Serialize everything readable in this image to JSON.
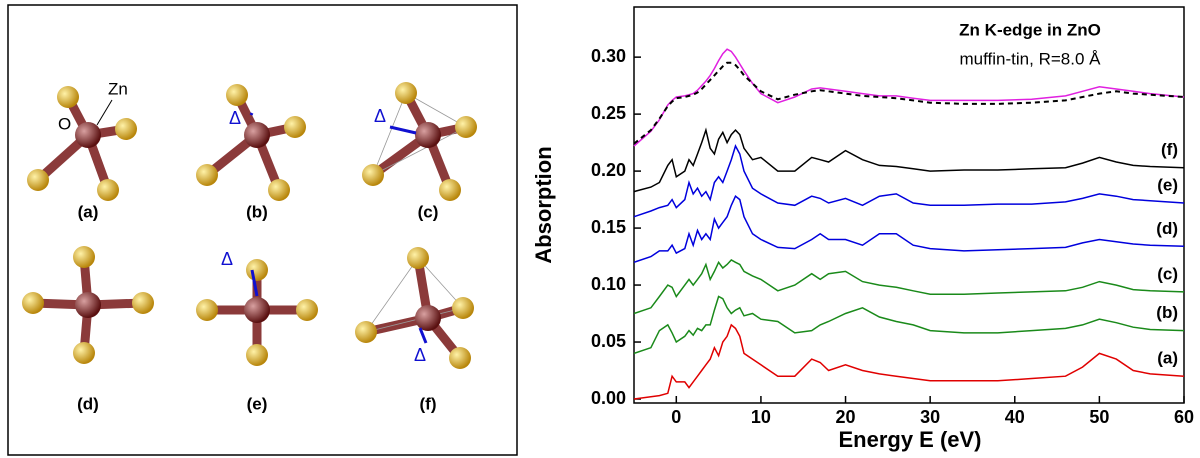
{
  "structures": {
    "panels": [
      "(a)",
      "(b)",
      "(c)",
      "(d)",
      "(e)",
      "(f)"
    ],
    "atom_labels": {
      "o": "O",
      "zn": "Zn"
    },
    "displacement": "Δ"
  },
  "chart_data": {
    "type": "line",
    "title": "Zn K-edge in ZnO",
    "subtitle": "muffin-tin, R=8.0 Å",
    "x_label": "Energy E (eV)",
    "y_label": "Absorption",
    "xlim": [
      -5,
      60
    ],
    "xticks": [
      0,
      10,
      20,
      30,
      40,
      50,
      60
    ],
    "ylim": [
      -0.0035,
      0.344
    ],
    "yticks": [
      {
        "value": 0,
        "label": "0.00"
      },
      {
        "value": 0.05,
        "label": "0.05"
      },
      {
        "value": 0.1,
        "label": "0.10"
      },
      {
        "value": 0.15,
        "label": "0.15"
      },
      {
        "value": 0.2,
        "label": "0.20"
      },
      {
        "value": 0.25,
        "label": "0.25"
      },
      {
        "value": 0.3,
        "label": "0.30"
      }
    ],
    "x": [
      -5,
      -3,
      -2,
      -1,
      -0.5,
      0,
      1,
      1.5,
      2,
      2.5,
      3,
      3.5,
      4,
      4.5,
      5,
      5.5,
      6,
      6.5,
      7,
      7.5,
      8,
      9,
      10,
      12,
      14,
      16,
      17,
      18,
      20,
      22,
      24,
      26,
      28,
      30,
      34,
      38,
      42,
      46,
      48,
      50,
      52,
      54,
      56,
      60
    ],
    "series": [
      {
        "color": "#e020e0",
        "style": "solid",
        "values": [
          0.222,
          0.235,
          0.245,
          0.258,
          0.262,
          0.265,
          0.266,
          0.267,
          0.268,
          0.271,
          0.275,
          0.279,
          0.284,
          0.29,
          0.297,
          0.303,
          0.307,
          0.305,
          0.3,
          0.294,
          0.288,
          0.277,
          0.268,
          0.26,
          0.265,
          0.272,
          0.273,
          0.272,
          0.27,
          0.268,
          0.266,
          0.266,
          0.264,
          0.262,
          0.262,
          0.262,
          0.263,
          0.266,
          0.27,
          0.274,
          0.272,
          0.27,
          0.268,
          0.265
        ]
      },
      {
        "color": "#000000",
        "style": "dashed",
        "values": [
          0.224,
          0.236,
          0.246,
          0.257,
          0.261,
          0.264,
          0.265,
          0.266,
          0.267,
          0.269,
          0.272,
          0.276,
          0.28,
          0.284,
          0.288,
          0.292,
          0.295,
          0.295,
          0.293,
          0.289,
          0.284,
          0.277,
          0.27,
          0.263,
          0.267,
          0.27,
          0.271,
          0.27,
          0.268,
          0.266,
          0.265,
          0.264,
          0.262,
          0.26,
          0.259,
          0.259,
          0.26,
          0.262,
          0.265,
          0.268,
          0.27,
          0.268,
          0.267,
          0.265
        ]
      },
      {
        "name": "(f)",
        "color": "#000000",
        "style": "solid",
        "values": [
          0.182,
          0.186,
          0.19,
          0.205,
          0.21,
          0.195,
          0.2,
          0.21,
          0.205,
          0.215,
          0.225,
          0.236,
          0.22,
          0.215,
          0.228,
          0.234,
          0.225,
          0.232,
          0.236,
          0.232,
          0.22,
          0.21,
          0.212,
          0.2,
          0.2,
          0.212,
          0.21,
          0.208,
          0.218,
          0.21,
          0.205,
          0.204,
          0.202,
          0.2,
          0.201,
          0.201,
          0.202,
          0.203,
          0.207,
          0.212,
          0.208,
          0.205,
          0.204,
          0.203
        ]
      },
      {
        "name": "(e)",
        "color": "#0000dd",
        "style": "solid",
        "values": [
          0.16,
          0.165,
          0.168,
          0.17,
          0.175,
          0.168,
          0.175,
          0.19,
          0.18,
          0.185,
          0.178,
          0.182,
          0.175,
          0.19,
          0.195,
          0.19,
          0.2,
          0.21,
          0.222,
          0.215,
          0.2,
          0.185,
          0.18,
          0.172,
          0.17,
          0.178,
          0.176,
          0.172,
          0.176,
          0.17,
          0.178,
          0.18,
          0.172,
          0.17,
          0.17,
          0.171,
          0.171,
          0.173,
          0.176,
          0.18,
          0.178,
          0.175,
          0.174,
          0.172
        ]
      },
      {
        "name": "(d)",
        "color": "#0000dd",
        "style": "solid",
        "values": [
          0.12,
          0.125,
          0.13,
          0.13,
          0.135,
          0.128,
          0.132,
          0.145,
          0.135,
          0.148,
          0.14,
          0.145,
          0.14,
          0.158,
          0.15,
          0.155,
          0.16,
          0.17,
          0.178,
          0.175,
          0.16,
          0.145,
          0.14,
          0.133,
          0.132,
          0.14,
          0.145,
          0.14,
          0.14,
          0.135,
          0.145,
          0.145,
          0.135,
          0.132,
          0.13,
          0.131,
          0.132,
          0.133,
          0.137,
          0.14,
          0.138,
          0.136,
          0.135,
          0.134
        ]
      },
      {
        "name": "(c)",
        "color": "#1a8a1a",
        "style": "solid",
        "values": [
          0.075,
          0.08,
          0.09,
          0.1,
          0.098,
          0.09,
          0.1,
          0.105,
          0.1,
          0.105,
          0.11,
          0.118,
          0.105,
          0.112,
          0.12,
          0.115,
          0.118,
          0.122,
          0.12,
          0.118,
          0.112,
          0.108,
          0.105,
          0.095,
          0.1,
          0.11,
          0.105,
          0.11,
          0.112,
          0.103,
          0.1,
          0.098,
          0.095,
          0.092,
          0.092,
          0.093,
          0.094,
          0.095,
          0.098,
          0.103,
          0.1,
          0.096,
          0.095,
          0.094
        ]
      },
      {
        "name": "(b)",
        "color": "#1a8a1a",
        "style": "solid",
        "values": [
          0.04,
          0.045,
          0.06,
          0.065,
          0.058,
          0.05,
          0.055,
          0.06,
          0.056,
          0.062,
          0.06,
          0.065,
          0.065,
          0.078,
          0.09,
          0.088,
          0.08,
          0.075,
          0.078,
          0.08,
          0.073,
          0.075,
          0.07,
          0.068,
          0.058,
          0.06,
          0.065,
          0.068,
          0.075,
          0.08,
          0.072,
          0.068,
          0.065,
          0.06,
          0.058,
          0.058,
          0.06,
          0.062,
          0.065,
          0.07,
          0.067,
          0.063,
          0.061,
          0.06
        ]
      },
      {
        "name": "(a)",
        "color": "#e00000",
        "style": "solid",
        "values": [
          0.0,
          0.002,
          0.003,
          0.005,
          0.02,
          0.015,
          0.015,
          0.01,
          0.015,
          0.02,
          0.025,
          0.03,
          0.035,
          0.045,
          0.038,
          0.05,
          0.055,
          0.065,
          0.062,
          0.055,
          0.04,
          0.035,
          0.03,
          0.02,
          0.02,
          0.035,
          0.032,
          0.025,
          0.03,
          0.025,
          0.022,
          0.02,
          0.018,
          0.016,
          0.016,
          0.016,
          0.018,
          0.02,
          0.028,
          0.04,
          0.035,
          0.025,
          0.022,
          0.02
        ]
      }
    ]
  }
}
